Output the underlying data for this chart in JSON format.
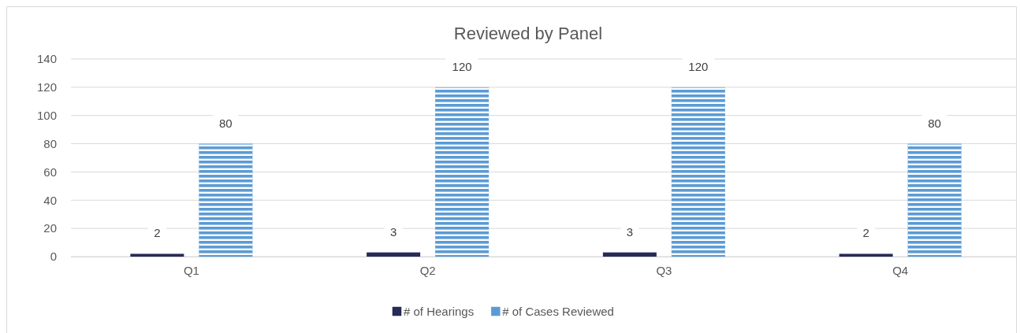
{
  "chart_data": {
    "type": "bar",
    "title": "Reviewed by Panel",
    "categories": [
      "Q1",
      "Q2",
      "Q3",
      "Q4"
    ],
    "series": [
      {
        "name": "# of Hearings",
        "color": "#262b57",
        "values": [
          2,
          3,
          3,
          2
        ]
      },
      {
        "name": "# of Cases Reviewed",
        "color": "#5b9bd5",
        "values": [
          80,
          120,
          120,
          80
        ]
      }
    ],
    "ylim": [
      0,
      140
    ],
    "yticks": [
      0,
      20,
      40,
      60,
      80,
      100,
      120,
      140
    ],
    "grid": "y",
    "legend": "bottom",
    "data_labels": true
  }
}
